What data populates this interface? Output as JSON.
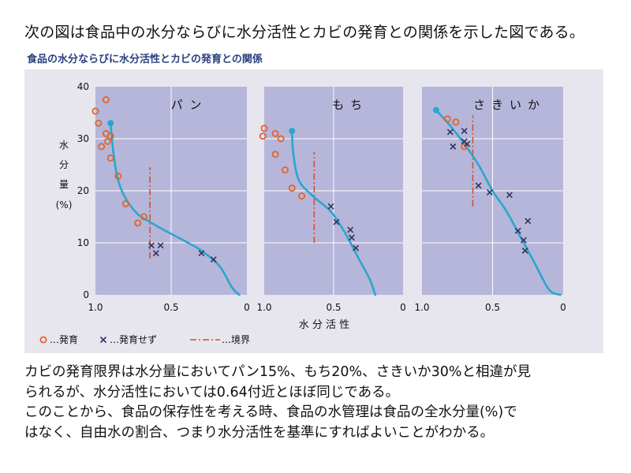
{
  "heading": "次の図は食品中の水分ならびに水分活性とカビの発育との関係を示した図である。",
  "subtitle": "食品の水分ならびに水分活性とカビの発育との関係",
  "conclusion": [
    "カビの発育限界は水分量においてパン15%、もち20%、さきいか30%と相違が見",
    "られるが、水分活性においては0.64付近とほぼ同じである。",
    "このことから、食品の保存性を考える時、食品の水管理は食品の全水分量(%)で",
    "はなく、自由水の割合、つまり水分活性を基準にすればよいことがわかる。"
  ],
  "colors": {
    "plot_bg": "#b5b6d9",
    "grid": "#ffffff",
    "curve": "#2aa6cf",
    "grow": "#e2632d",
    "nogrow": "#33335c",
    "boundary": "#d2512a"
  },
  "chart_data": {
    "type": "scatter",
    "ylabel": [
      "水",
      "分",
      "量",
      "(%)"
    ],
    "xlabel": "水 分 活 性",
    "xlim": [
      1.0,
      0
    ],
    "ylim": [
      0,
      40
    ],
    "x_ticks": [
      "1.0",
      "0.5",
      "0"
    ],
    "y_ticks": [
      "0",
      "10",
      "20",
      "30",
      "40"
    ],
    "legend": {
      "grow": "…発育",
      "nogrow": "…発育せず",
      "boundary": "…境界"
    },
    "panels": [
      {
        "name": "パン",
        "grow": [
          [
            0.93,
            37.5
          ],
          [
            1.0,
            35.3
          ],
          [
            0.98,
            33.0
          ],
          [
            0.92,
            29.5
          ],
          [
            0.96,
            28.5
          ],
          [
            0.93,
            31.0
          ],
          [
            0.9,
            30.5
          ],
          [
            0.9,
            26.3
          ],
          [
            0.85,
            22.8
          ],
          [
            0.8,
            17.5
          ],
          [
            0.72,
            13.8
          ],
          [
            0.68,
            15.0
          ]
        ],
        "nogrow": [
          [
            0.63,
            9.5
          ],
          [
            0.6,
            8.0
          ],
          [
            0.57,
            9.5
          ],
          [
            0.3,
            8.0
          ],
          [
            0.22,
            6.8
          ]
        ],
        "curve": [
          [
            0.9,
            33.0
          ],
          [
            0.88,
            27.0
          ],
          [
            0.85,
            22.0
          ],
          [
            0.8,
            18.5
          ],
          [
            0.72,
            15.5
          ],
          [
            0.64,
            14.0
          ],
          [
            0.55,
            12.5
          ],
          [
            0.42,
            10.5
          ],
          [
            0.3,
            8.5
          ],
          [
            0.18,
            5.5
          ],
          [
            0.1,
            1.5
          ],
          [
            0.05,
            0
          ]
        ],
        "boundary": {
          "x": 0.64,
          "y": [
            7,
            24.5
          ]
        }
      },
      {
        "name": "もち",
        "grow": [
          [
            1.0,
            32.0
          ],
          [
            1.01,
            30.5
          ],
          [
            0.92,
            31.0
          ],
          [
            0.88,
            30.0
          ],
          [
            0.92,
            27.0
          ],
          [
            0.85,
            24.0
          ],
          [
            0.8,
            20.5
          ],
          [
            0.73,
            19.0
          ]
        ],
        "nogrow": [
          [
            0.52,
            17.0
          ],
          [
            0.48,
            14.0
          ],
          [
            0.38,
            12.5
          ],
          [
            0.37,
            11.0
          ],
          [
            0.34,
            9.0
          ]
        ],
        "curve": [
          [
            0.8,
            31.5
          ],
          [
            0.79,
            27.0
          ],
          [
            0.75,
            22.0
          ],
          [
            0.65,
            19.0
          ],
          [
            0.52,
            16.0
          ],
          [
            0.42,
            12.0
          ],
          [
            0.32,
            7.0
          ],
          [
            0.24,
            3.0
          ],
          [
            0.2,
            0
          ]
        ],
        "boundary": {
          "x": 0.64,
          "y": [
            10,
            27.5
          ]
        }
      },
      {
        "name": "さきいか",
        "grow": [
          [
            0.82,
            33.8
          ],
          [
            0.76,
            33.2
          ],
          [
            0.7,
            28.5
          ]
        ],
        "nogrow": [
          [
            0.8,
            31.3
          ],
          [
            0.7,
            31.5
          ],
          [
            0.78,
            28.5
          ],
          [
            0.68,
            29.0
          ],
          [
            0.7,
            29.5
          ],
          [
            0.6,
            21.0
          ],
          [
            0.52,
            19.7
          ],
          [
            0.38,
            19.2
          ],
          [
            0.32,
            12.3
          ],
          [
            0.28,
            10.5
          ],
          [
            0.27,
            8.5
          ],
          [
            0.25,
            14.2
          ]
        ],
        "curve": [
          [
            0.9,
            35.5
          ],
          [
            0.8,
            32.5
          ],
          [
            0.7,
            29.0
          ],
          [
            0.6,
            25.0
          ],
          [
            0.5,
            20.0
          ],
          [
            0.4,
            16.0
          ],
          [
            0.3,
            11.0
          ],
          [
            0.2,
            6.0
          ],
          [
            0.1,
            1.0
          ],
          [
            0.02,
            0
          ]
        ],
        "boundary": {
          "x": 0.64,
          "y": [
            17,
            34.5
          ]
        }
      }
    ]
  }
}
